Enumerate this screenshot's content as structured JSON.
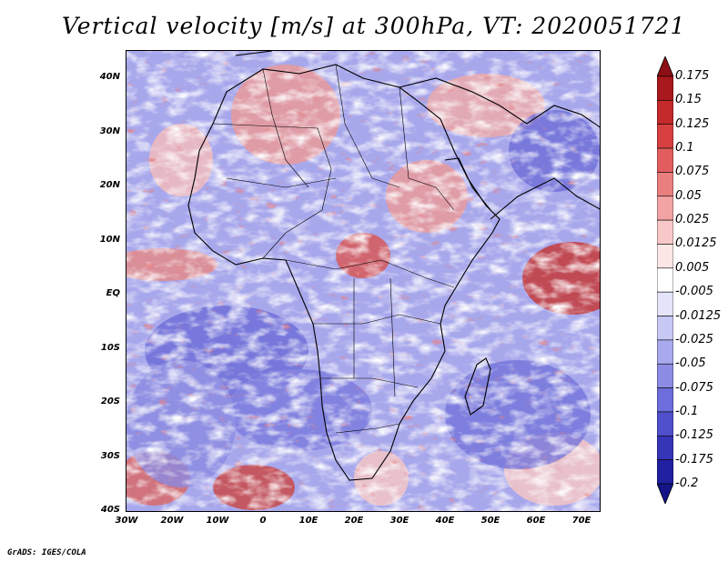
{
  "title": "Vertical velocity [m/s] at 300hPa, VT: 2020051721",
  "lat_labels": [
    "40N",
    "30N",
    "20N",
    "10N",
    "EQ",
    "10S",
    "20S",
    "30S",
    "40S"
  ],
  "lon_labels": [
    "30W",
    "20W",
    "10W",
    "0",
    "10E",
    "20E",
    "30E",
    "40E",
    "50E",
    "60E",
    "70E"
  ],
  "colorbar": {
    "levels": [
      "0.175",
      "0.15",
      "0.125",
      "0.1",
      "0.075",
      "0.05",
      "0.025",
      "0.0125",
      "0.005",
      "-0.005",
      "-0.0125",
      "-0.025",
      "-0.05",
      "-0.075",
      "-0.1",
      "-0.125",
      "-0.175",
      "-0.2"
    ],
    "colors": [
      "#8b0f14",
      "#a8181c",
      "#c42a2a",
      "#d84040",
      "#e25e5e",
      "#ea7f7f",
      "#f2a3a3",
      "#f8c8c8",
      "#fde6e6",
      "#ffffff",
      "#e4e4fb",
      "#c8c8f5",
      "#a9a9ee",
      "#8c8ce5",
      "#6d6ddb",
      "#5050cc",
      "#3535b8",
      "#2020a0",
      "#141488"
    ]
  },
  "footer": "GrADS: IGES/COLA"
}
